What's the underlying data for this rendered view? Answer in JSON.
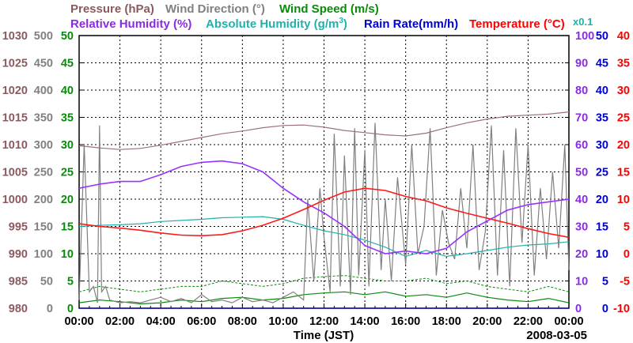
{
  "chart_data": {
    "type": "line",
    "x_axis": {
      "label": "Time (JST)",
      "ticks": [
        "00:00",
        "02:00",
        "04:00",
        "06:00",
        "08:00",
        "10:00",
        "12:00",
        "14:00",
        "16:00",
        "18:00",
        "20:00",
        "22:00",
        "00:00"
      ],
      "range_hours": [
        0,
        24
      ],
      "date": "2008-03-05"
    },
    "axis_extra_label": "x0.1",
    "legend": {
      "row1": [
        {
          "key": "pressure",
          "text": "Pressure (hPa)"
        },
        {
          "key": "wind_direction",
          "text": "Wind Direction (°)"
        },
        {
          "key": "wind_speed",
          "text": "Wind Speed (m/s)"
        }
      ],
      "row2": [
        {
          "key": "relative_humidity",
          "text": "Relative Humidity (%)"
        },
        {
          "key": "absolute_humidity",
          "text": "Absolute Humidity (g/m",
          "sup": "3",
          "tail": ")"
        },
        {
          "key": "rain_rate",
          "text": "Rain Rate(mm/h)"
        },
        {
          "key": "temperature",
          "text": "Temperature (°C)"
        }
      ]
    },
    "axes": {
      "pressure": {
        "side": "left",
        "color": "#8b5a5f",
        "range": [
          980,
          1030
        ],
        "ticks": [
          "980",
          "985",
          "990",
          "995",
          "1000",
          "1005",
          "1010",
          "1015",
          "1020",
          "1025",
          "1030"
        ]
      },
      "wind_direction": {
        "side": "left",
        "color": "#808080",
        "range": [
          0,
          500
        ],
        "ticks": [
          "0",
          "50",
          "100",
          "150",
          "200",
          "250",
          "300",
          "350",
          "400",
          "450",
          "500"
        ]
      },
      "wind_speed": {
        "side": "left",
        "color": "#0a8a0a",
        "range": [
          0,
          50
        ],
        "ticks": [
          "0",
          "5",
          "10",
          "15",
          "20",
          "25",
          "30",
          "35",
          "40",
          "45",
          "50"
        ]
      },
      "relative_humidity": {
        "side": "right",
        "color": "#8a2be2",
        "range": [
          0,
          100
        ],
        "ticks": [
          "0",
          "10",
          "20",
          "30",
          "40",
          "50",
          "60",
          "70",
          "80",
          "90",
          "100"
        ]
      },
      "rain_rate": {
        "side": "right",
        "color": "#0000cd",
        "range": [
          0,
          50
        ],
        "ticks": [
          "0",
          "5",
          "10",
          "15",
          "20",
          "25",
          "30",
          "35",
          "40",
          "45",
          "50"
        ]
      },
      "temperature": {
        "side": "right",
        "color": "#ff0000",
        "range": [
          -10,
          40
        ],
        "ticks": [
          "-10",
          "-5",
          "0",
          "5",
          "10",
          "15",
          "20",
          "25",
          "30",
          "35",
          "40"
        ]
      },
      "absolute_humidity": {
        "side": "right",
        "color": "#20b2aa",
        "range": [
          0,
          50
        ],
        "scale_note": "x0.1"
      }
    },
    "series": [
      {
        "name": "Pressure",
        "axis": "pressure",
        "color": "#9a7278",
        "hours": [
          0,
          1,
          2,
          3,
          4,
          5,
          6,
          7,
          8,
          9,
          10,
          11,
          12,
          13,
          14,
          15,
          16,
          17,
          18,
          19,
          20,
          21,
          22,
          23,
          24
        ],
        "values": [
          1009.8,
          1009.4,
          1009.1,
          1009.3,
          1009.9,
          1010.6,
          1011.3,
          1012,
          1012.5,
          1013.1,
          1013.5,
          1013.6,
          1013.2,
          1012.6,
          1012.2,
          1011.8,
          1011.6,
          1012.1,
          1013.1,
          1014,
          1014.7,
          1015.2,
          1015.4,
          1015.6,
          1016
        ]
      },
      {
        "name": "Relative Humidity",
        "axis": "relative_humidity",
        "color": "#9932ff",
        "hours": [
          0,
          1,
          2,
          3,
          4,
          5,
          6,
          7,
          8,
          9,
          10,
          11,
          12,
          13,
          14,
          15,
          16,
          17,
          18,
          19,
          20,
          21,
          22,
          23,
          24
        ],
        "values": [
          44,
          45.5,
          46.5,
          46.5,
          49,
          52,
          53.5,
          54,
          53,
          50,
          44,
          39,
          35,
          30,
          23,
          20,
          21,
          20,
          22,
          28,
          32,
          36,
          38,
          39,
          40
        ]
      },
      {
        "name": "Absolute Humidity",
        "axis": "absolute_humidity",
        "color": "#20b2aa",
        "hours": [
          0,
          1,
          2,
          3,
          4,
          5,
          6,
          7,
          8,
          9,
          10,
          11,
          12,
          13,
          14,
          15,
          16,
          17,
          18,
          19,
          20,
          21,
          22,
          23,
          24
        ],
        "values": [
          15,
          15.2,
          15.3,
          15.5,
          15.9,
          16.1,
          16.3,
          16.6,
          16.7,
          16.8,
          16.3,
          15.2,
          14.2,
          13.5,
          12.5,
          11.2,
          9.5,
          10.6,
          9.5,
          10,
          10.6,
          11.2,
          11.6,
          11.8,
          12.2
        ]
      },
      {
        "name": "Temperature",
        "axis": "temperature",
        "color": "#ff1a1a",
        "hours": [
          0,
          1,
          2,
          3,
          4,
          5,
          6,
          7,
          8,
          9,
          10,
          11,
          12,
          13,
          14,
          15,
          16,
          17,
          18,
          19,
          20,
          21,
          22,
          23,
          24
        ],
        "values": [
          5.5,
          5,
          4.7,
          4.3,
          3.8,
          3.4,
          3.3,
          3.5,
          4.2,
          5.2,
          6.5,
          8.1,
          9.8,
          11.3,
          12,
          11.6,
          10.5,
          9.7,
          8.4,
          7.4,
          6.5,
          5.6,
          4.6,
          3.7,
          3
        ]
      },
      {
        "name": "Rain Rate",
        "axis": "rain_rate",
        "color": "#0000cd",
        "hours": [
          0,
          24
        ],
        "values": [
          0,
          0
        ]
      },
      {
        "name": "Wind Direction",
        "axis": "wind_direction",
        "color": "#808080",
        "hours": [
          0,
          0.25,
          0.5,
          0.7,
          0.9,
          1.0,
          1.1,
          1.3,
          1.5,
          2,
          2.5,
          3,
          3.5,
          4,
          4.5,
          5,
          5.5,
          6,
          6.5,
          7,
          7.5,
          8,
          8.5,
          9,
          9.5,
          10,
          10.5,
          11,
          11.2,
          11.5,
          11.8,
          12,
          12.3,
          12.5,
          12.8,
          13,
          13.3,
          13.5,
          13.7,
          14,
          14.2,
          14.5,
          14.8,
          15,
          15.3,
          15.6,
          16,
          16.3,
          16.6,
          16.9,
          17.2,
          17.5,
          17.8,
          18.1,
          18.4,
          18.7,
          19,
          19.3,
          19.6,
          19.9,
          20.2,
          20.5,
          20.8,
          21.1,
          21.4,
          21.7,
          22,
          22.3,
          22.6,
          22.9,
          23.2,
          23.5,
          23.8,
          24
        ],
        "values": [
          15,
          300,
          30,
          40,
          10,
          335,
          30,
          40,
          15,
          10,
          12,
          10,
          15,
          20,
          12,
          18,
          10,
          25,
          12,
          15,
          10,
          20,
          12,
          15,
          10,
          20,
          30,
          15,
          200,
          50,
          220,
          130,
          30,
          320,
          40,
          280,
          25,
          330,
          60,
          290,
          40,
          340,
          70,
          200,
          50,
          240,
          80,
          300,
          100,
          150,
          330,
          60,
          180,
          120,
          90,
          220,
          110,
          300,
          70,
          140,
          335,
          60,
          290,
          40,
          330,
          120,
          300,
          60,
          220,
          90,
          250,
          110,
          300,
          70
        ]
      },
      {
        "name": "Wind Speed",
        "axis": "wind_speed",
        "color": "#0a8a0a",
        "hours": [
          0,
          1,
          2,
          3,
          4,
          5,
          6,
          7,
          8,
          9,
          10,
          11,
          12,
          13,
          14,
          15,
          16,
          17,
          18,
          19,
          20,
          21,
          22,
          23,
          24
        ],
        "values": [
          1,
          1.5,
          1.2,
          0.8,
          1,
          1.5,
          1.2,
          1.8,
          2,
          1.5,
          1.8,
          2.5,
          2.8,
          3,
          2.5,
          3,
          2.2,
          2.5,
          2,
          2.8,
          2,
          1.5,
          1.2,
          1.8,
          1
        ],
        "max_values": [
          3,
          4,
          3.5,
          3,
          3.5,
          4,
          4,
          5,
          4.5,
          4,
          4.5,
          5.5,
          5.8,
          6,
          5.5,
          5,
          5,
          5.5,
          4.5,
          5,
          4,
          3.5,
          3,
          4,
          3
        ]
      }
    ]
  }
}
